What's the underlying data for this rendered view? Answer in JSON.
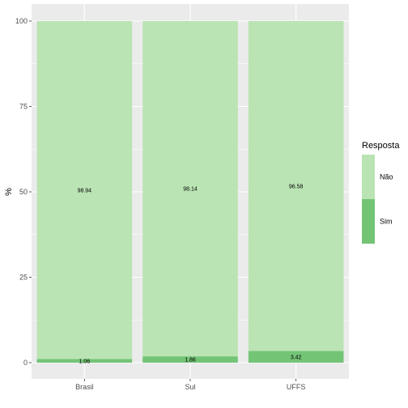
{
  "chart_data": {
    "type": "bar",
    "stacked": true,
    "categories": [
      "Brasil",
      "Sul",
      "UFFS"
    ],
    "series": [
      {
        "name": "Sim",
        "values": [
          1.06,
          1.86,
          3.42
        ],
        "labels": [
          "1.06",
          "1.86",
          "3.42"
        ],
        "color": "#74c476"
      },
      {
        "name": "Não",
        "values": [
          98.94,
          98.14,
          96.58
        ],
        "labels": [
          "98.94",
          "98.14",
          "96.58"
        ],
        "color": "#bae4b3"
      }
    ],
    "xlabel": "",
    "ylabel": "%",
    "ylim": [
      0,
      100
    ],
    "yticks": [
      0,
      25,
      50,
      75,
      100
    ],
    "grid": true,
    "panel_background": "#ebebeb",
    "legend": {
      "title": "Resposta",
      "position": "right",
      "entries": [
        "Não",
        "Sim"
      ]
    }
  }
}
